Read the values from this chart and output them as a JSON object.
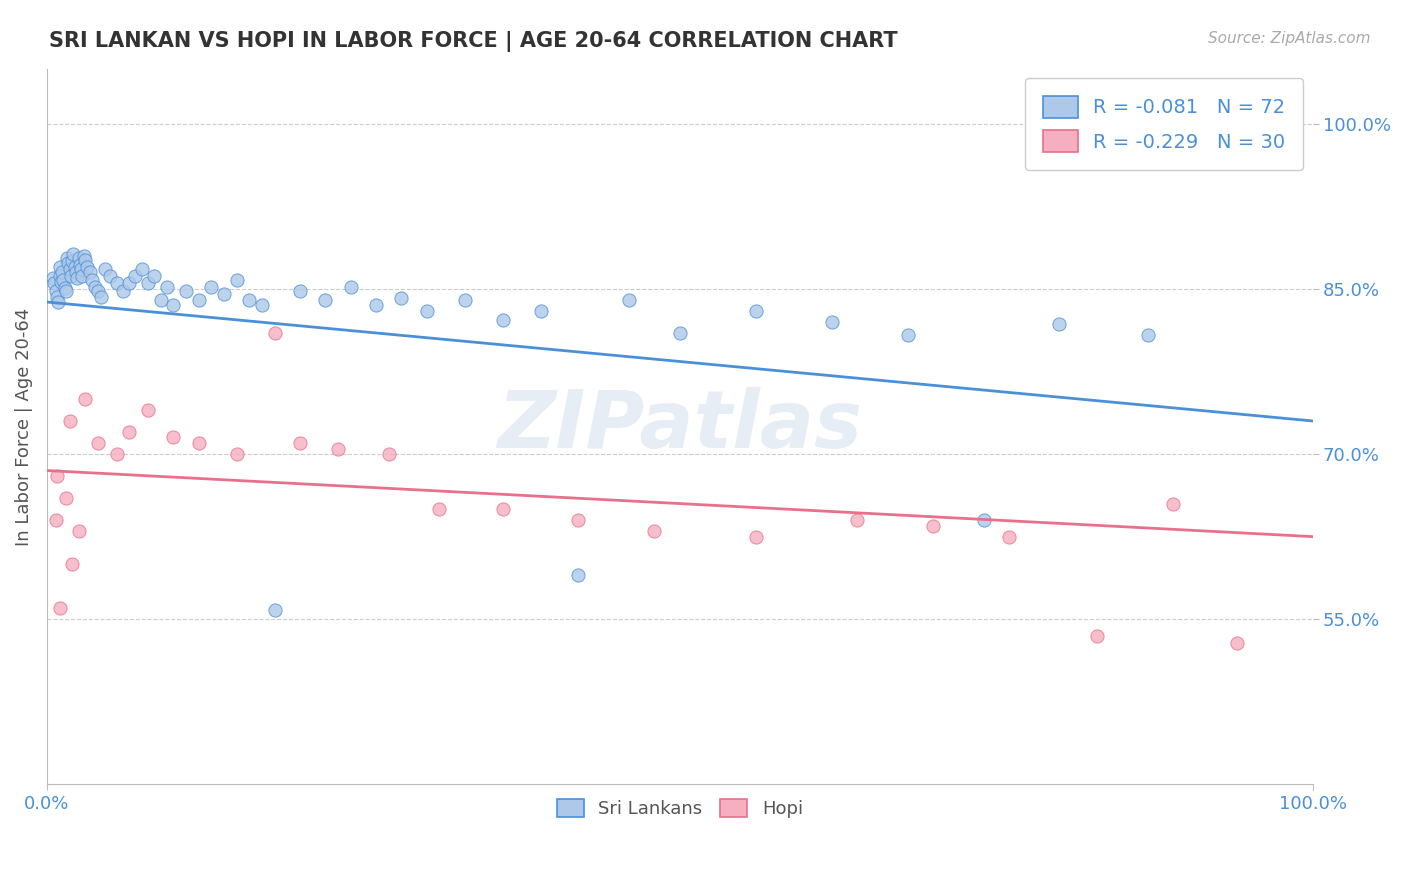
{
  "title": "SRI LANKAN VS HOPI IN LABOR FORCE | AGE 20-64 CORRELATION CHART",
  "source_text": "Source: ZipAtlas.com",
  "ylabel": "In Labor Force | Age 20-64",
  "xlim": [
    0.0,
    1.0
  ],
  "ylim": [
    0.4,
    1.05
  ],
  "x_tick_labels": [
    "0.0%",
    "100.0%"
  ],
  "y_tick_values": [
    0.55,
    0.7,
    0.85,
    1.0
  ],
  "y_tick_labels": [
    "55.0%",
    "70.0%",
    "85.0%",
    "100.0%"
  ],
  "legend_r_sri": "-0.081",
  "legend_n_sri": "72",
  "legend_r_hopi": "-0.229",
  "legend_n_hopi": "30",
  "sri_color": "#adc8e8",
  "hopi_color": "#f5afc0",
  "sri_line_color": "#4a90d9",
  "hopi_line_color": "#e8708a",
  "background_color": "#ffffff",
  "watermark": "ZIPatlas",
  "sri_x": [
    0.005,
    0.006,
    0.007,
    0.008,
    0.009,
    0.01,
    0.01,
    0.011,
    0.012,
    0.013,
    0.014,
    0.015,
    0.016,
    0.017,
    0.018,
    0.019,
    0.02,
    0.021,
    0.022,
    0.023,
    0.024,
    0.025,
    0.026,
    0.027,
    0.028,
    0.029,
    0.03,
    0.032,
    0.034,
    0.036,
    0.038,
    0.04,
    0.043,
    0.046,
    0.05,
    0.055,
    0.06,
    0.065,
    0.07,
    0.075,
    0.08,
    0.085,
    0.09,
    0.095,
    0.1,
    0.11,
    0.12,
    0.13,
    0.14,
    0.15,
    0.16,
    0.17,
    0.18,
    0.2,
    0.22,
    0.24,
    0.26,
    0.28,
    0.3,
    0.33,
    0.36,
    0.39,
    0.42,
    0.46,
    0.5,
    0.56,
    0.62,
    0.68,
    0.74,
    0.8,
    0.87,
    0.97
  ],
  "sri_y": [
    0.86,
    0.855,
    0.848,
    0.843,
    0.838,
    0.87,
    0.862,
    0.856,
    0.865,
    0.858,
    0.851,
    0.848,
    0.878,
    0.873,
    0.868,
    0.862,
    0.875,
    0.882,
    0.87,
    0.865,
    0.86,
    0.878,
    0.872,
    0.868,
    0.862,
    0.88,
    0.876,
    0.87,
    0.865,
    0.858,
    0.852,
    0.848,
    0.843,
    0.868,
    0.862,
    0.855,
    0.848,
    0.855,
    0.862,
    0.868,
    0.855,
    0.862,
    0.84,
    0.852,
    0.835,
    0.848,
    0.84,
    0.852,
    0.845,
    0.858,
    0.84,
    0.835,
    0.558,
    0.848,
    0.84,
    0.852,
    0.835,
    0.842,
    0.83,
    0.84,
    0.822,
    0.83,
    0.59,
    0.84,
    0.81,
    0.83,
    0.82,
    0.808,
    0.64,
    0.818,
    0.808,
    0.97
  ],
  "hopi_x": [
    0.007,
    0.008,
    0.01,
    0.015,
    0.018,
    0.02,
    0.025,
    0.03,
    0.04,
    0.055,
    0.065,
    0.08,
    0.1,
    0.12,
    0.15,
    0.18,
    0.2,
    0.23,
    0.27,
    0.31,
    0.36,
    0.42,
    0.48,
    0.56,
    0.64,
    0.7,
    0.76,
    0.83,
    0.89,
    0.94
  ],
  "hopi_y": [
    0.64,
    0.68,
    0.56,
    0.66,
    0.73,
    0.6,
    0.63,
    0.75,
    0.71,
    0.7,
    0.72,
    0.74,
    0.715,
    0.71,
    0.7,
    0.81,
    0.71,
    0.705,
    0.7,
    0.65,
    0.65,
    0.64,
    0.63,
    0.625,
    0.64,
    0.635,
    0.625,
    0.535,
    0.655,
    0.528
  ]
}
